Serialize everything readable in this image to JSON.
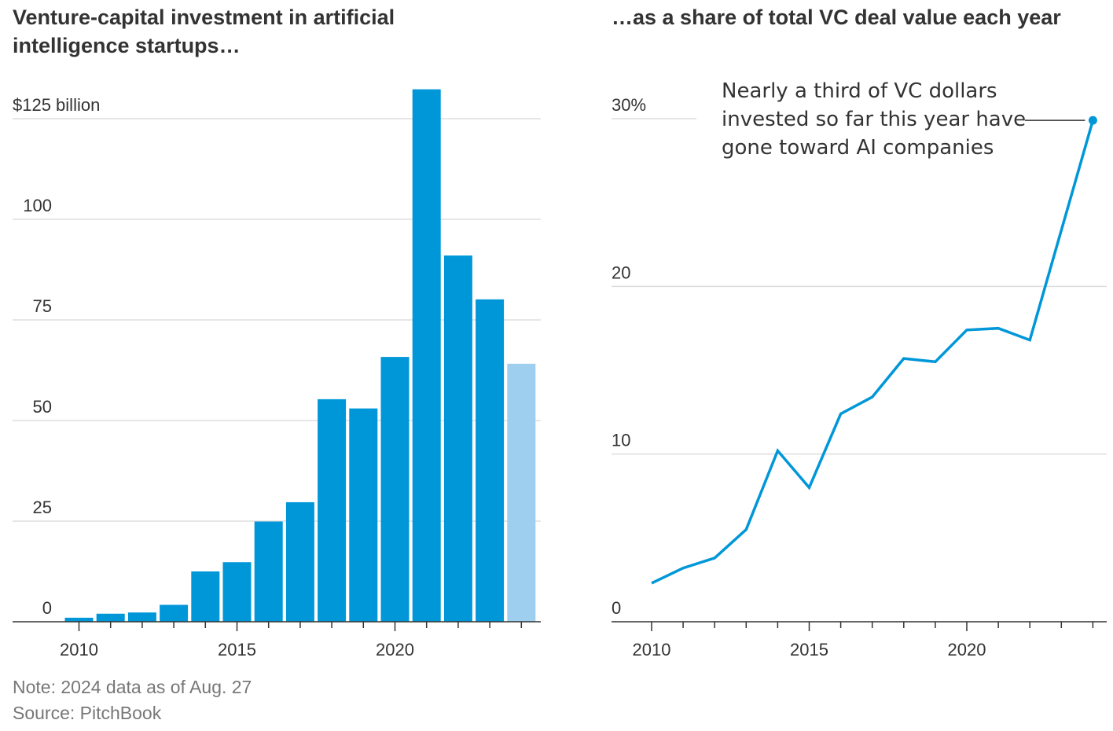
{
  "left_title": "Venture-capital investment in artificial intelligence startups…",
  "right_title": "…as a share of total VC deal value each year",
  "note": "Note: 2024 data as of Aug. 27",
  "source": "Source: PitchBook",
  "chart_data": [
    {
      "type": "bar",
      "title": "Venture-capital investment in artificial intelligence startups…",
      "x": [
        2010,
        2011,
        2012,
        2013,
        2014,
        2015,
        2016,
        2017,
        2018,
        2019,
        2020,
        2021,
        2022,
        2023,
        2024
      ],
      "values": [
        1.0,
        2.0,
        2.3,
        4.2,
        12.5,
        14.8,
        24.9,
        29.7,
        55.3,
        53.0,
        65.8,
        132.3,
        91.0,
        80.1,
        64.1
      ],
      "ylim": [
        0,
        125
      ],
      "yticks": [
        0,
        25,
        50,
        75,
        100,
        125
      ],
      "ytick_labels": [
        "0",
        "25",
        "50",
        "75",
        "100",
        "$125 billion"
      ],
      "xticks": [
        2010,
        2015,
        2020
      ],
      "xtick_labels": [
        "2010",
        "2015",
        "2020"
      ],
      "grid": true,
      "colors": {
        "bar": "#0097d9",
        "partial_year_bar": "#9fcfee",
        "grid": "#dddddd",
        "axis": "#333333"
      },
      "partial_year": 2024
    },
    {
      "type": "line",
      "title": "…as a share of total VC deal value each year",
      "x": [
        2010,
        2011,
        2012,
        2013,
        2014,
        2015,
        2016,
        2017,
        2018,
        2019,
        2020,
        2021,
        2022,
        2023,
        2024
      ],
      "values": [
        2.3,
        3.2,
        3.8,
        5.5,
        10.2,
        8.0,
        12.4,
        13.4,
        15.7,
        15.5,
        17.4,
        17.5,
        16.8,
        null,
        29.9
      ],
      "ylim": [
        0,
        30
      ],
      "yticks": [
        0,
        10,
        20,
        30
      ],
      "ytick_labels": [
        "0",
        "10",
        "20",
        "30%"
      ],
      "xticks": [
        2010,
        2015,
        2020
      ],
      "xtick_labels": [
        "2010",
        "2015",
        "2020"
      ],
      "grid": true,
      "colors": {
        "line": "#0097d9",
        "grid": "#dddddd",
        "axis": "#333333"
      },
      "annotation": {
        "lines": [
          "Nearly a third of VC dollars",
          "invested so far this year have",
          "gone toward AI companies"
        ],
        "target_year": 2024
      }
    }
  ]
}
